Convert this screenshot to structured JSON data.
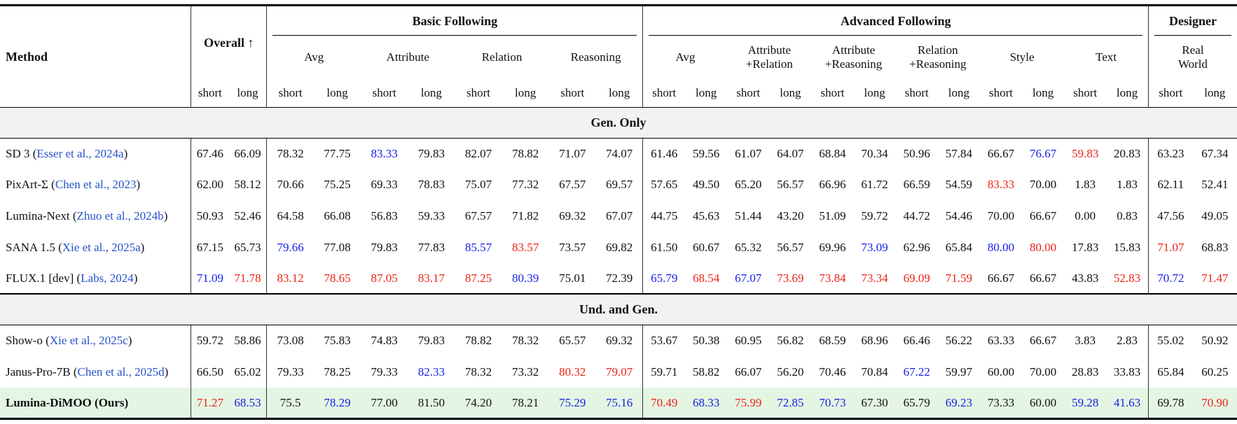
{
  "colors": {
    "citation_blue": "#2653c8",
    "value_second_best_blue": "#1620e6",
    "value_best_red": "#ec2217",
    "highlight_row_green": "#e4f6e3",
    "section_band_gray": "#f2f2f2"
  },
  "table": {
    "header": {
      "method_label": "Method",
      "overall_label": "Overall ↑",
      "sub_short": "short",
      "sub_long": "long",
      "groups": [
        {
          "label": "Basic Following",
          "cols": [
            "Avg",
            "Attribute",
            "Relation",
            "Reasoning"
          ]
        },
        {
          "label": "Advanced Following",
          "cols": [
            "Avg",
            "Attribute\n+Relation",
            "Attribute\n+Reasoning",
            "Relation\n+Reasoning",
            "Style",
            "Text"
          ]
        },
        {
          "label": "Designer",
          "cols": [
            "Real\nWorld"
          ]
        }
      ]
    },
    "sections": [
      {
        "title": "Gen. Only",
        "rows": [
          {
            "name": "SD 3",
            "cite": "Esser et al., 2024a",
            "highlight": false,
            "values": [
              "67.46",
              "66.09",
              "78.32",
              "77.75",
              "83.33",
              "79.83",
              "82.07",
              "78.82",
              "71.07",
              "74.07",
              "61.46",
              "59.56",
              "61.07",
              "64.07",
              "68.84",
              "70.34",
              "50.96",
              "57.84",
              "66.67",
              "76.67",
              "59.83",
              "20.83",
              "63.23",
              "67.34"
            ],
            "colors": [
              "k",
              "k",
              "k",
              "k",
              "b",
              "k",
              "k",
              "k",
              "k",
              "k",
              "k",
              "k",
              "k",
              "k",
              "k",
              "k",
              "k",
              "k",
              "k",
              "b",
              "r",
              "k",
              "k",
              "k"
            ]
          },
          {
            "name": "PixArt-Σ",
            "cite": "Chen et al., 2023",
            "highlight": false,
            "values": [
              "62.00",
              "58.12",
              "70.66",
              "75.25",
              "69.33",
              "78.83",
              "75.07",
              "77.32",
              "67.57",
              "69.57",
              "57.65",
              "49.50",
              "65.20",
              "56.57",
              "66.96",
              "61.72",
              "66.59",
              "54.59",
              "83.33",
              "70.00",
              "1.83",
              "1.83",
              "62.11",
              "52.41"
            ],
            "colors": [
              "k",
              "k",
              "k",
              "k",
              "k",
              "k",
              "k",
              "k",
              "k",
              "k",
              "k",
              "k",
              "k",
              "k",
              "k",
              "k",
              "k",
              "k",
              "r",
              "k",
              "k",
              "k",
              "k",
              "k"
            ]
          },
          {
            "name": "Lumina-Next",
            "cite": "Zhuo et al., 2024b",
            "highlight": false,
            "values": [
              "50.93",
              "52.46",
              "64.58",
              "66.08",
              "56.83",
              "59.33",
              "67.57",
              "71.82",
              "69.32",
              "67.07",
              "44.75",
              "45.63",
              "51.44",
              "43.20",
              "51.09",
              "59.72",
              "44.72",
              "54.46",
              "70.00",
              "66.67",
              "0.00",
              "0.83",
              "47.56",
              "49.05"
            ],
            "colors": [
              "k",
              "k",
              "k",
              "k",
              "k",
              "k",
              "k",
              "k",
              "k",
              "k",
              "k",
              "k",
              "k",
              "k",
              "k",
              "k",
              "k",
              "k",
              "k",
              "k",
              "k",
              "k",
              "k",
              "k"
            ]
          },
          {
            "name": "SANA 1.5",
            "cite": "Xie et al., 2025a",
            "highlight": false,
            "values": [
              "67.15",
              "65.73",
              "79.66",
              "77.08",
              "79.83",
              "77.83",
              "85.57",
              "83.57",
              "73.57",
              "69.82",
              "61.50",
              "60.67",
              "65.32",
              "56.57",
              "69.96",
              "73.09",
              "62.96",
              "65.84",
              "80.00",
              "80.00",
              "17.83",
              "15.83",
              "71.07",
              "68.83"
            ],
            "colors": [
              "k",
              "k",
              "b",
              "k",
              "k",
              "k",
              "b",
              "r",
              "k",
              "k",
              "k",
              "k",
              "k",
              "k",
              "k",
              "b",
              "k",
              "k",
              "b",
              "r",
              "k",
              "k",
              "r",
              "k"
            ]
          },
          {
            "name": "FLUX.1 [dev]",
            "cite": "Labs, 2024",
            "highlight": false,
            "values": [
              "71.09",
              "71.78",
              "83.12",
              "78.65",
              "87.05",
              "83.17",
              "87.25",
              "80.39",
              "75.01",
              "72.39",
              "65.79",
              "68.54",
              "67.07",
              "73.69",
              "73.84",
              "73.34",
              "69.09",
              "71.59",
              "66.67",
              "66.67",
              "43.83",
              "52.83",
              "70.72",
              "71.47"
            ],
            "colors": [
              "b",
              "r",
              "r",
              "r",
              "r",
              "r",
              "r",
              "b",
              "k",
              "k",
              "b",
              "r",
              "b",
              "r",
              "r",
              "r",
              "r",
              "r",
              "k",
              "k",
              "k",
              "r",
              "b",
              "r"
            ]
          }
        ]
      },
      {
        "title": "Und. and Gen.",
        "rows": [
          {
            "name": "Show-o",
            "cite": "Xie et al., 2025c",
            "highlight": false,
            "values": [
              "59.72",
              "58.86",
              "73.08",
              "75.83",
              "74.83",
              "79.83",
              "78.82",
              "78.32",
              "65.57",
              "69.32",
              "53.67",
              "50.38",
              "60.95",
              "56.82",
              "68.59",
              "68.96",
              "66.46",
              "56.22",
              "63.33",
              "66.67",
              "3.83",
              "2.83",
              "55.02",
              "50.92"
            ],
            "colors": [
              "k",
              "k",
              "k",
              "k",
              "k",
              "k",
              "k",
              "k",
              "k",
              "k",
              "k",
              "k",
              "k",
              "k",
              "k",
              "k",
              "k",
              "k",
              "k",
              "k",
              "k",
              "k",
              "k",
              "k"
            ]
          },
          {
            "name": "Janus-Pro-7B",
            "cite": "Chen et al., 2025d",
            "highlight": false,
            "values": [
              "66.50",
              "65.02",
              "79.33",
              "78.25",
              "79.33",
              "82.33",
              "78.32",
              "73.32",
              "80.32",
              "79.07",
              "59.71",
              "58.82",
              "66.07",
              "56.20",
              "70.46",
              "70.84",
              "67.22",
              "59.97",
              "60.00",
              "70.00",
              "28.83",
              "33.83",
              "65.84",
              "60.25"
            ],
            "colors": [
              "k",
              "k",
              "k",
              "k",
              "k",
              "b",
              "k",
              "k",
              "r",
              "r",
              "k",
              "k",
              "k",
              "k",
              "k",
              "k",
              "b",
              "k",
              "k",
              "k",
              "k",
              "k",
              "k",
              "k"
            ]
          },
          {
            "name": "Lumina-DiMOO",
            "cite": null,
            "suffix": "(Ours)",
            "highlight": true,
            "values": [
              "71.27",
              "68.53",
              "75.5",
              "78.29",
              "77.00",
              "81.50",
              "74.20",
              "78.21",
              "75.29",
              "75.16",
              "70.49",
              "68.33",
              "75.99",
              "72.85",
              "70.73",
              "67.30",
              "65.79",
              "69.23",
              "73.33",
              "60.00",
              "59.28",
              "41.63",
              "69.78",
              "70.90"
            ],
            "colors": [
              "r",
              "b",
              "k",
              "b",
              "k",
              "k",
              "k",
              "k",
              "b",
              "b",
              "r",
              "b",
              "r",
              "b",
              "b",
              "k",
              "k",
              "b",
              "k",
              "k",
              "b",
              "b",
              "k",
              "r"
            ]
          }
        ]
      }
    ]
  }
}
